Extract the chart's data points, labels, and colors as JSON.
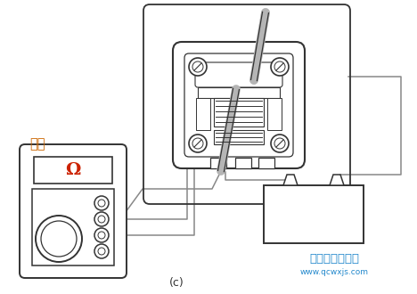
{
  "bg_color": "#ffffff",
  "line_color": "#333333",
  "omega_color": "#cc2200",
  "label_color": "#cc6600",
  "watermark_color": "#2288cc",
  "label_text": "导通",
  "caption": "(c)",
  "watermark_line1": "汿车维修技术网",
  "watermark_line2": "www.qcwxjs.com",
  "fig_width": 4.68,
  "fig_height": 3.3,
  "dpi": 100
}
